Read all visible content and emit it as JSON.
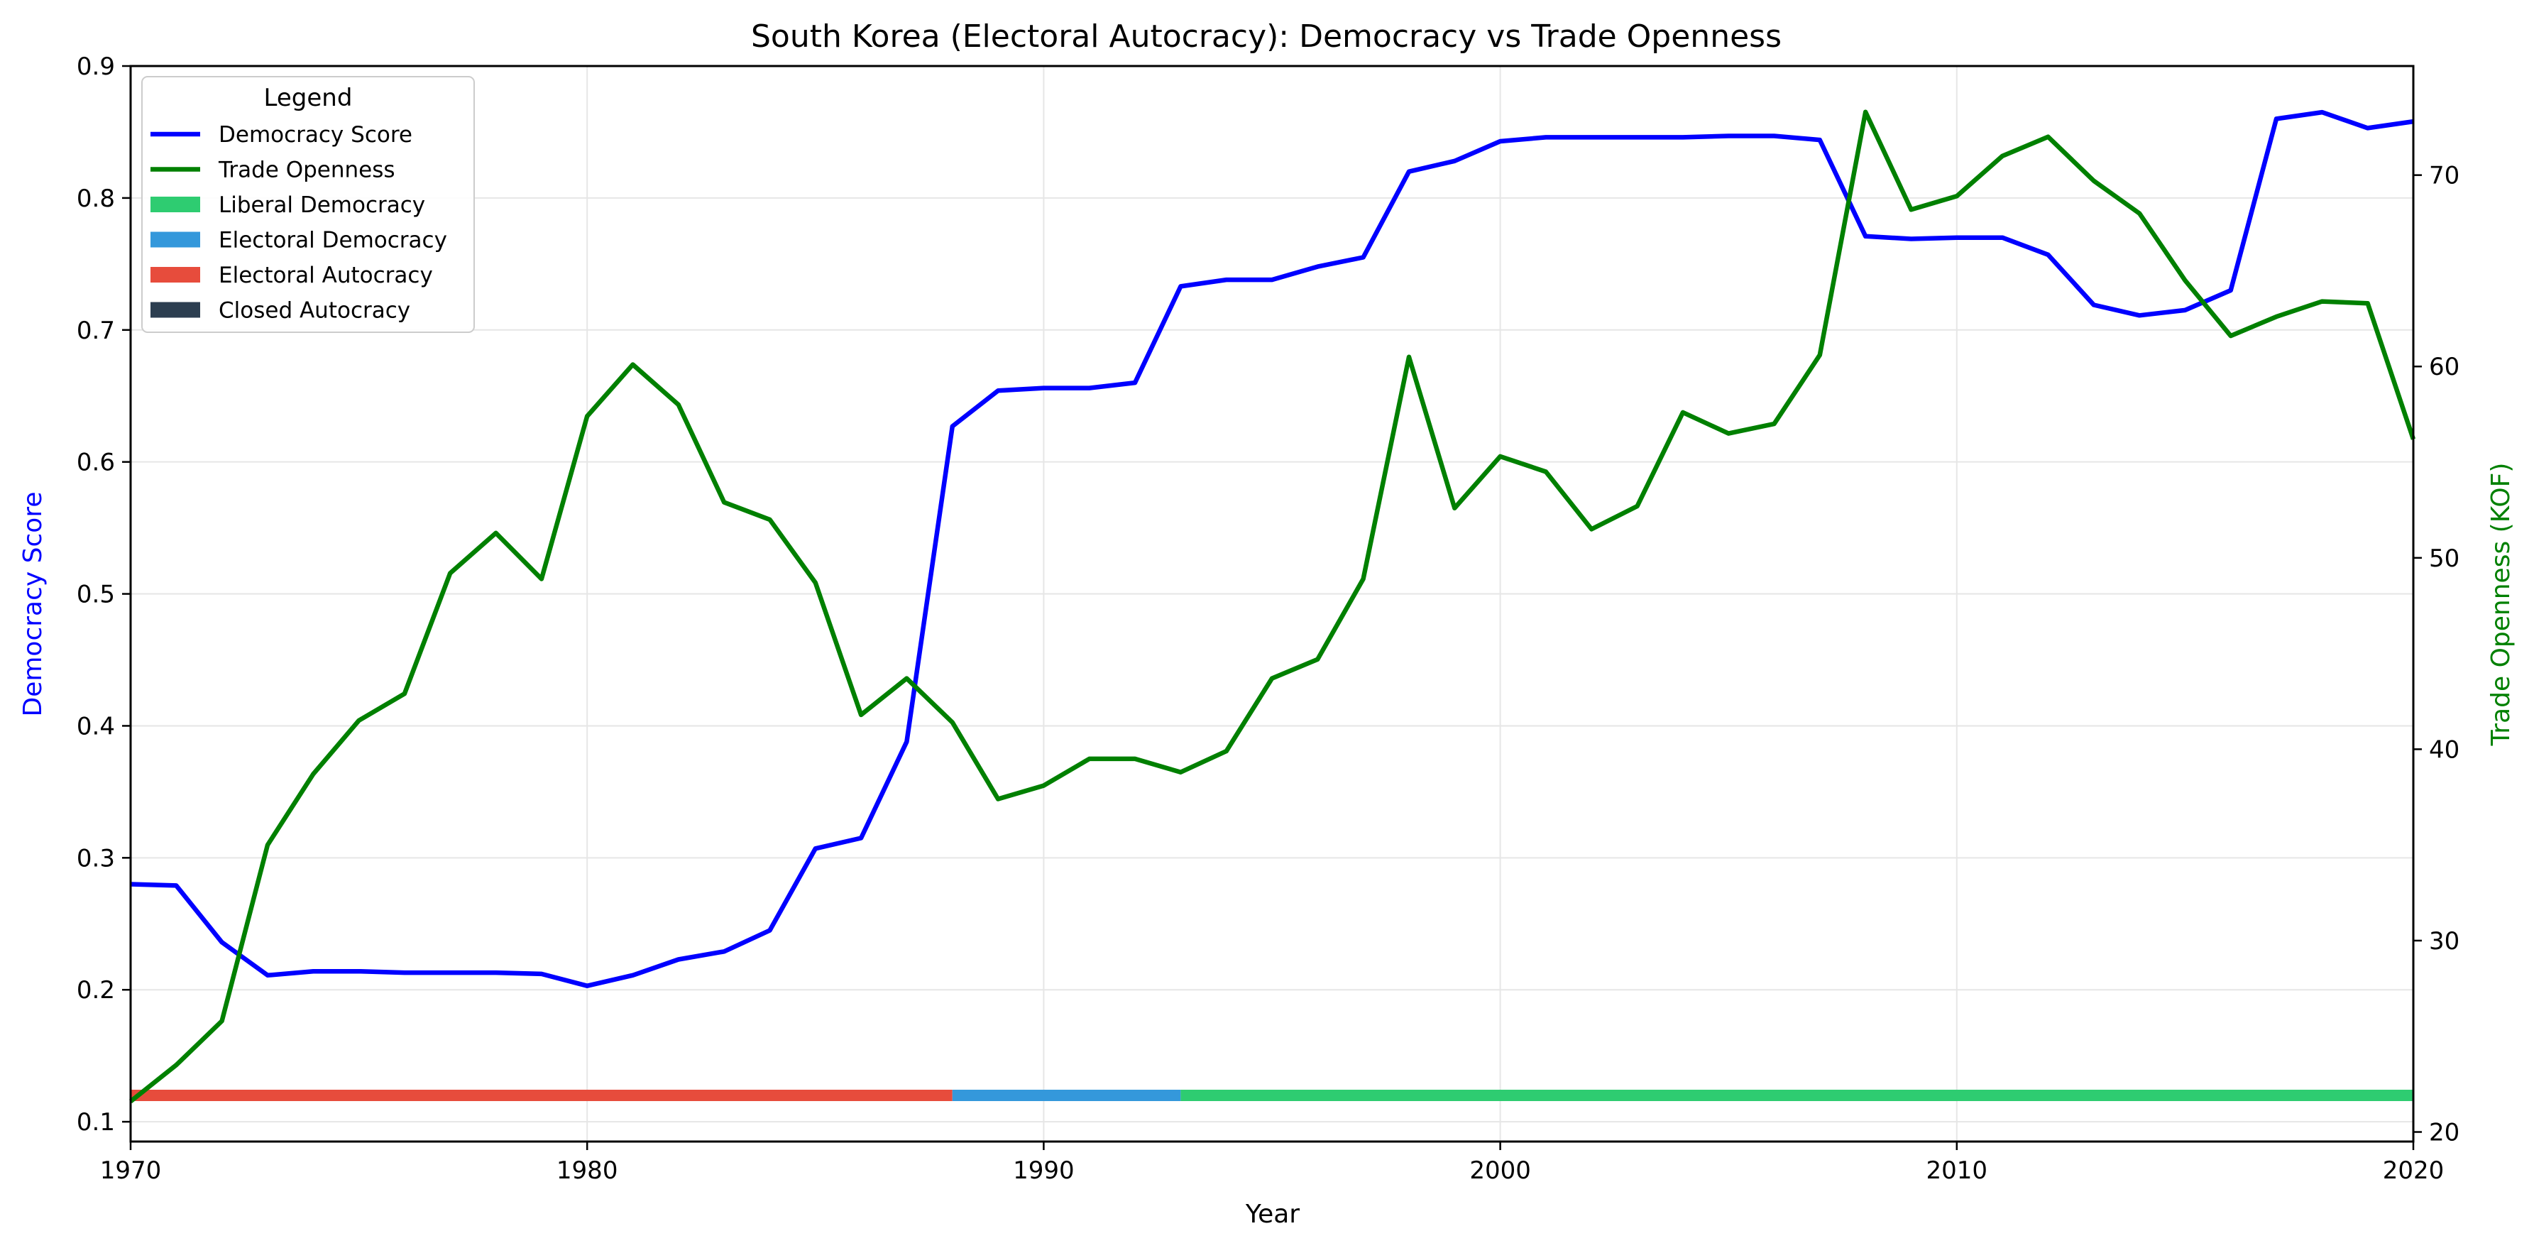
{
  "chart_data": {
    "type": "line",
    "title": "South Korea (Electoral Autocracy): Democracy vs Trade Openness",
    "xlabel": "Year",
    "ylabel_left": "Democracy Score",
    "ylabel_right": "Trade Openness (KOF)",
    "xlim": [
      1970,
      2020
    ],
    "ylim_left": [
      0.085,
      0.9
    ],
    "ylim_right": [
      19.5,
      75.7
    ],
    "x_ticks": [
      1970,
      1980,
      1990,
      2000,
      2010,
      2020
    ],
    "y_left_ticks": [
      0.1,
      0.2,
      0.3,
      0.4,
      0.5,
      0.6,
      0.7,
      0.8,
      0.9
    ],
    "y_right_ticks": [
      20,
      30,
      40,
      50,
      60,
      70
    ],
    "grid": true,
    "legend_title": "Legend",
    "legend_position": "top-left",
    "series": [
      {
        "name": "Democracy Score",
        "axis": "left",
        "color": "#0000ff",
        "x": [
          1970,
          1971,
          1972,
          1973,
          1974,
          1975,
          1976,
          1977,
          1978,
          1979,
          1980,
          1981,
          1982,
          1983,
          1984,
          1985,
          1986,
          1987,
          1988,
          1989,
          1990,
          1991,
          1992,
          1993,
          1994,
          1995,
          1996,
          1997,
          1998,
          1999,
          2000,
          2001,
          2002,
          2003,
          2004,
          2005,
          2006,
          2007,
          2008,
          2009,
          2010,
          2011,
          2012,
          2013,
          2014,
          2015,
          2016,
          2017,
          2018,
          2019,
          2020
        ],
        "values": [
          0.28,
          0.279,
          0.236,
          0.211,
          0.214,
          0.214,
          0.213,
          0.213,
          0.213,
          0.212,
          0.203,
          0.211,
          0.223,
          0.229,
          0.245,
          0.307,
          0.315,
          0.388,
          0.627,
          0.654,
          0.656,
          0.656,
          0.66,
          0.733,
          0.738,
          0.738,
          0.748,
          0.755,
          0.82,
          0.828,
          0.843,
          0.846,
          0.846,
          0.846,
          0.846,
          0.847,
          0.847,
          0.844,
          0.771,
          0.769,
          0.77,
          0.77,
          0.757,
          0.719,
          0.711,
          0.715,
          0.73,
          0.86,
          0.865,
          0.853,
          0.858
        ]
      },
      {
        "name": "Trade Openness",
        "axis": "right",
        "color": "#008000",
        "x": [
          1970,
          1971,
          1972,
          1973,
          1974,
          1975,
          1976,
          1977,
          1978,
          1979,
          1980,
          1981,
          1982,
          1983,
          1984,
          1985,
          1986,
          1987,
          1988,
          1989,
          1990,
          1991,
          1992,
          1993,
          1994,
          1995,
          1996,
          1997,
          1998,
          1999,
          2000,
          2001,
          2002,
          2003,
          2004,
          2005,
          2006,
          2007,
          2008,
          2009,
          2010,
          2011,
          2012,
          2013,
          2014,
          2015,
          2016,
          2017,
          2018,
          2019,
          2020
        ],
        "values": [
          21.6,
          23.5,
          25.8,
          35.0,
          38.7,
          41.5,
          42.9,
          49.2,
          51.3,
          48.9,
          57.4,
          60.1,
          58.0,
          52.9,
          52.0,
          48.7,
          41.8,
          43.7,
          41.4,
          37.4,
          38.1,
          39.5,
          39.5,
          38.8,
          39.9,
          43.7,
          44.7,
          48.9,
          60.5,
          52.6,
          55.3,
          54.5,
          51.5,
          52.7,
          57.6,
          56.5,
          57.0,
          60.6,
          73.3,
          68.2,
          68.9,
          71.0,
          72.0,
          69.7,
          68.0,
          64.5,
          61.6,
          62.6,
          63.4,
          63.3,
          56.2
        ]
      }
    ],
    "regime_bar": {
      "level": 0.12,
      "segments": [
        {
          "label": "Electoral Autocracy",
          "start": 1970,
          "end": 1988,
          "color": "#e74c3c"
        },
        {
          "label": "Electoral Democracy",
          "start": 1988,
          "end": 1993,
          "color": "#3498db"
        },
        {
          "label": "Liberal Democracy",
          "start": 1993,
          "end": 2020,
          "color": "#2ecc71"
        }
      ]
    },
    "legend_entries": [
      {
        "label": "Democracy Score",
        "color": "#0000ff",
        "kind": "line"
      },
      {
        "label": "Trade Openness",
        "color": "#008000",
        "kind": "line"
      },
      {
        "label": "Liberal Democracy",
        "color": "#2ecc71",
        "kind": "patch"
      },
      {
        "label": "Electoral Democracy",
        "color": "#3498db",
        "kind": "patch"
      },
      {
        "label": "Electoral Autocracy",
        "color": "#e74c3c",
        "kind": "patch"
      },
      {
        "label": "Closed Autocracy",
        "color": "#2c3e50",
        "kind": "patch"
      }
    ]
  }
}
